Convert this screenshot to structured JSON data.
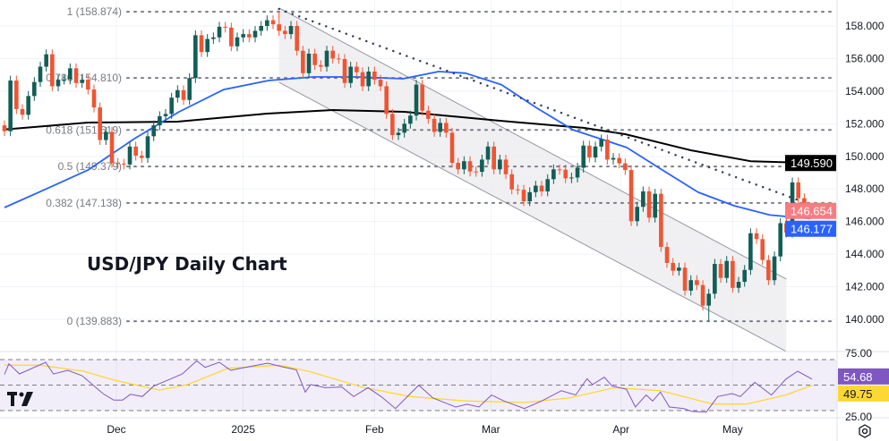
{
  "chart_data": {
    "type": "candlestick",
    "title": "USD/JPY Daily Chart",
    "closes": [
      151.54,
      154.65,
      152.9,
      152.55,
      153.7,
      154.56,
      155.5,
      156.26,
      154.3,
      154.7,
      154.72,
      155.4,
      154.5,
      154.7,
      154.1,
      153.0,
      151.0,
      151.5,
      149.6,
      149.55,
      149.5,
      150.6,
      150.04,
      149.9,
      151.23,
      151.9,
      152.46,
      152.6,
      153.6,
      154.06,
      153.46,
      154.8,
      157.43,
      156.4,
      157.2,
      157.3,
      157.95,
      157.9,
      156.75,
      157.3,
      157.5,
      157.3,
      157.7,
      158.0,
      158.35,
      158.1,
      157.7,
      157.5,
      158.0,
      156.48,
      155.1,
      156.3,
      155.6,
      155.5,
      156.48,
      156.0,
      155.97,
      154.5,
      155.5,
      155.16,
      154.3,
      155.2,
      154.7,
      154.3,
      152.6,
      151.3,
      151.45,
      152.0,
      152.5,
      154.4,
      152.8,
      152.3,
      151.5,
      152.05,
      151.45,
      149.6,
      149.2,
      149.7,
      149.07,
      149.05,
      149.8,
      150.6,
      149.2,
      149.8,
      148.9,
      147.97,
      147.95,
      147.24,
      147.8,
      148.2,
      147.85,
      148.6,
      149.2,
      149.18,
      148.65,
      148.7,
      149.3,
      150.66,
      149.93,
      150.6,
      151.03,
      149.8,
      149.9,
      149.57,
      149.16,
      146.02,
      146.9,
      147.85,
      146.24,
      147.7,
      144.44,
      143.46,
      142.98,
      143.17,
      141.76,
      142.4,
      142.1,
      140.84,
      141.57,
      143.4,
      142.54,
      143.58,
      141.93,
      142.3,
      143.03,
      145.28,
      144.92,
      143.64,
      142.4,
      143.86,
      145.9,
      145.32,
      148.4,
      147.43,
      146.75,
      146.654
    ],
    "first_open": 151.9,
    "extremes": {
      "high": {
        "index": 46,
        "value": 158.874
      },
      "low": {
        "index": 118,
        "value": 139.883
      }
    },
    "ylim": [
      138.2,
      159.6
    ],
    "y_ticks": [
      "158.000",
      "156.000",
      "154.000",
      "152.000",
      "150.000",
      "148.000",
      "146.000",
      "144.000",
      "142.000",
      "140.000"
    ],
    "x_ticks": [
      {
        "label": "Dec",
        "index": 18.75
      },
      {
        "label": "2025",
        "index": 40
      },
      {
        "label": "Feb",
        "index": 62
      },
      {
        "label": "Mar",
        "index": 81.5
      },
      {
        "label": "Apr",
        "index": 103.3
      },
      {
        "label": "May",
        "index": 122
      }
    ],
    "grid": true,
    "fibonacci": [
      {
        "ratio": "1",
        "value": "158.874"
      },
      {
        "ratio": "0.786",
        "value": "154.810"
      },
      {
        "ratio": "0.618",
        "value": "151.619"
      },
      {
        "ratio": "0.5",
        "value": "149.379"
      },
      {
        "ratio": "0.382",
        "value": "147.138"
      },
      {
        "ratio": "0",
        "value": "139.883"
      }
    ],
    "ma_fast": {
      "color": "#2962ff",
      "last": "146.177",
      "points": [
        [
          0,
          146.86
        ],
        [
          6.75,
          147.96
        ],
        [
          14,
          149.16
        ],
        [
          21.75,
          151.08
        ],
        [
          29.25,
          152.73
        ],
        [
          36.75,
          154.1
        ],
        [
          44.25,
          154.65
        ],
        [
          51.75,
          154.87
        ],
        [
          59.25,
          154.87
        ],
        [
          66.75,
          154.76
        ],
        [
          72.75,
          155.2
        ],
        [
          77.25,
          155.1
        ],
        [
          83.25,
          154.4
        ],
        [
          89.25,
          152.95
        ],
        [
          95.25,
          151.63
        ],
        [
          104.25,
          150.54
        ],
        [
          110.25,
          149.16
        ],
        [
          116.25,
          147.79
        ],
        [
          122.25,
          146.97
        ],
        [
          128.25,
          146.4
        ],
        [
          135,
          146.18
        ]
      ]
    },
    "ma_slow": {
      "color": "#000000",
      "last": "149.590",
      "points": [
        [
          0,
          151.65
        ],
        [
          14,
          152.07
        ],
        [
          29,
          152.13
        ],
        [
          44,
          152.62
        ],
        [
          55,
          152.84
        ],
        [
          67,
          152.73
        ],
        [
          83,
          152.18
        ],
        [
          97,
          151.75
        ],
        [
          104,
          151.36
        ],
        [
          115,
          150.37
        ],
        [
          125,
          149.7
        ],
        [
          135,
          149.59
        ]
      ]
    },
    "last_price": {
      "value": "146.654",
      "color": "#f77c80"
    },
    "trendline": {
      "from": [
        46,
        159.04
      ],
      "to": [
        138,
        146.64
      ]
    },
    "channel": {
      "upper": [
        [
          46,
          159.1
        ],
        [
          131,
          142.47
        ]
      ],
      "lower": [
        [
          46,
          154.54
        ],
        [
          131,
          138.02
        ]
      ]
    },
    "rsi": {
      "levels": [
        70,
        50,
        30
      ],
      "axis_labels": [
        "75.00",
        "25.00"
      ],
      "ylim": [
        25,
        75
      ],
      "value": "54.68",
      "color": "#7e57c2",
      "ma_value": "49.75",
      "ma_color": "#fdd835",
      "points": [
        [
          0,
          58.5
        ],
        [
          0.75,
          66.7
        ],
        [
          2.5,
          58.8
        ],
        [
          6.9,
          67.9
        ],
        [
          8.2,
          58.7
        ],
        [
          10.6,
          61.6
        ],
        [
          13,
          57.4
        ],
        [
          16.5,
          43.3
        ],
        [
          18.3,
          38.2
        ],
        [
          19.8,
          38.2
        ],
        [
          21.1,
          42.8
        ],
        [
          23.1,
          41
        ],
        [
          25,
          49.2
        ],
        [
          27.9,
          55
        ],
        [
          29.8,
          58.8
        ],
        [
          32.2,
          69
        ],
        [
          33.6,
          63.9
        ],
        [
          36,
          67.9
        ],
        [
          37.9,
          61.6
        ],
        [
          40.3,
          63.9
        ],
        [
          44.1,
          67.2
        ],
        [
          46.5,
          64.4
        ],
        [
          48.9,
          62
        ],
        [
          50.4,
          44.5
        ],
        [
          51.3,
          50.4
        ],
        [
          53.7,
          48
        ],
        [
          56.5,
          48.5
        ],
        [
          58.5,
          41
        ],
        [
          60.9,
          48
        ],
        [
          63.1,
          41
        ],
        [
          65.5,
          31.6
        ],
        [
          69.4,
          49.9
        ],
        [
          71.8,
          39.8
        ],
        [
          75.6,
          32.8
        ],
        [
          77.5,
          35
        ],
        [
          79.5,
          32.8
        ],
        [
          81.6,
          42.2
        ],
        [
          83.7,
          37.5
        ],
        [
          87.1,
          31.6
        ],
        [
          90,
          37.5
        ],
        [
          93.3,
          45.6
        ],
        [
          95.7,
          42.2
        ],
        [
          97.6,
          55
        ],
        [
          98.5,
          50.4
        ],
        [
          100.5,
          56.2
        ],
        [
          101.8,
          49.2
        ],
        [
          104.2,
          46.8
        ],
        [
          105.7,
          32.8
        ],
        [
          107.5,
          42.2
        ],
        [
          108.6,
          37.5
        ],
        [
          109.9,
          44.5
        ],
        [
          111.4,
          32.8
        ],
        [
          113.8,
          31.6
        ],
        [
          115.2,
          29.3
        ],
        [
          117.6,
          28.9
        ],
        [
          119.5,
          41
        ],
        [
          121.9,
          43.3
        ],
        [
          123.3,
          41
        ],
        [
          125.7,
          52.2
        ],
        [
          128.5,
          42.2
        ],
        [
          130.9,
          54.6
        ],
        [
          132.9,
          60.9
        ],
        [
          135.3,
          54.68
        ]
      ],
      "ma_points": [
        [
          0,
          65.6
        ],
        [
          6,
          65.6
        ],
        [
          13.3,
          60.9
        ],
        [
          18.3,
          53.9
        ],
        [
          26,
          46.1
        ],
        [
          30.7,
          50.4
        ],
        [
          37.5,
          63.2
        ],
        [
          46.1,
          65.6
        ],
        [
          50.9,
          60.9
        ],
        [
          60.3,
          48
        ],
        [
          68,
          41
        ],
        [
          77.5,
          37.5
        ],
        [
          87.1,
          36.3
        ],
        [
          94.5,
          39.8
        ],
        [
          102.3,
          48
        ],
        [
          109.9,
          45.6
        ],
        [
          118.7,
          35.1
        ],
        [
          124.3,
          35.1
        ],
        [
          130.9,
          42.2
        ],
        [
          135.3,
          49.75
        ]
      ]
    },
    "colors": {
      "up": "#115e57",
      "down": "#ef5533",
      "channel_fill": "#ececef",
      "grid": "#f0f3fa"
    }
  },
  "icons": {
    "logo": "tradingview-logo",
    "settings": "gear-icon"
  }
}
